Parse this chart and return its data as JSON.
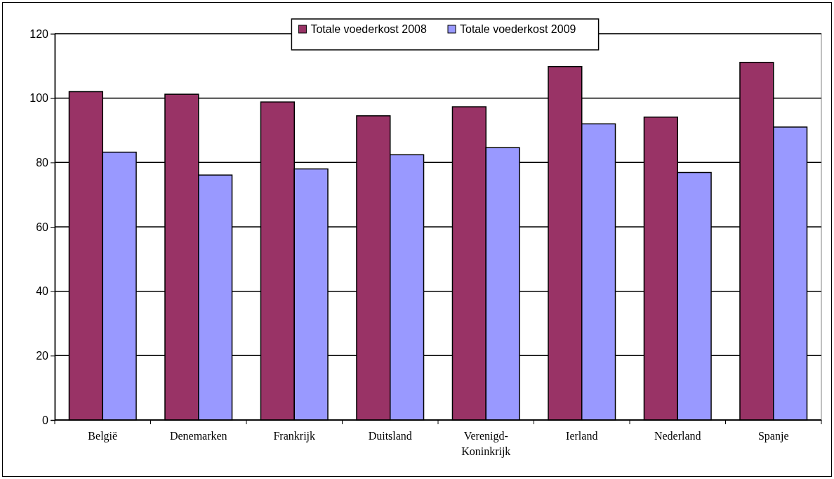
{
  "chart_data": {
    "type": "bar",
    "categories": [
      "België",
      "Denemarken",
      "Frankrijk",
      "Duitsland",
      "Verenigd-Koninkrijk",
      "Ierland",
      "Nederland",
      "Spanje"
    ],
    "series": [
      {
        "name": "Totale voederkost 2008",
        "color": "#993366",
        "values": [
          102,
          101.2,
          98.8,
          94.5,
          97.3,
          109.8,
          94.1,
          111.1
        ]
      },
      {
        "name": "Totale voederkost 2009",
        "color": "#9999ff",
        "values": [
          83.2,
          76.1,
          78,
          82.4,
          84.6,
          92,
          76.9,
          91
        ]
      }
    ],
    "ylim": [
      0,
      120
    ],
    "yticks": [
      0,
      20,
      40,
      60,
      80,
      100,
      120
    ],
    "grid": "y",
    "legend": "top"
  }
}
